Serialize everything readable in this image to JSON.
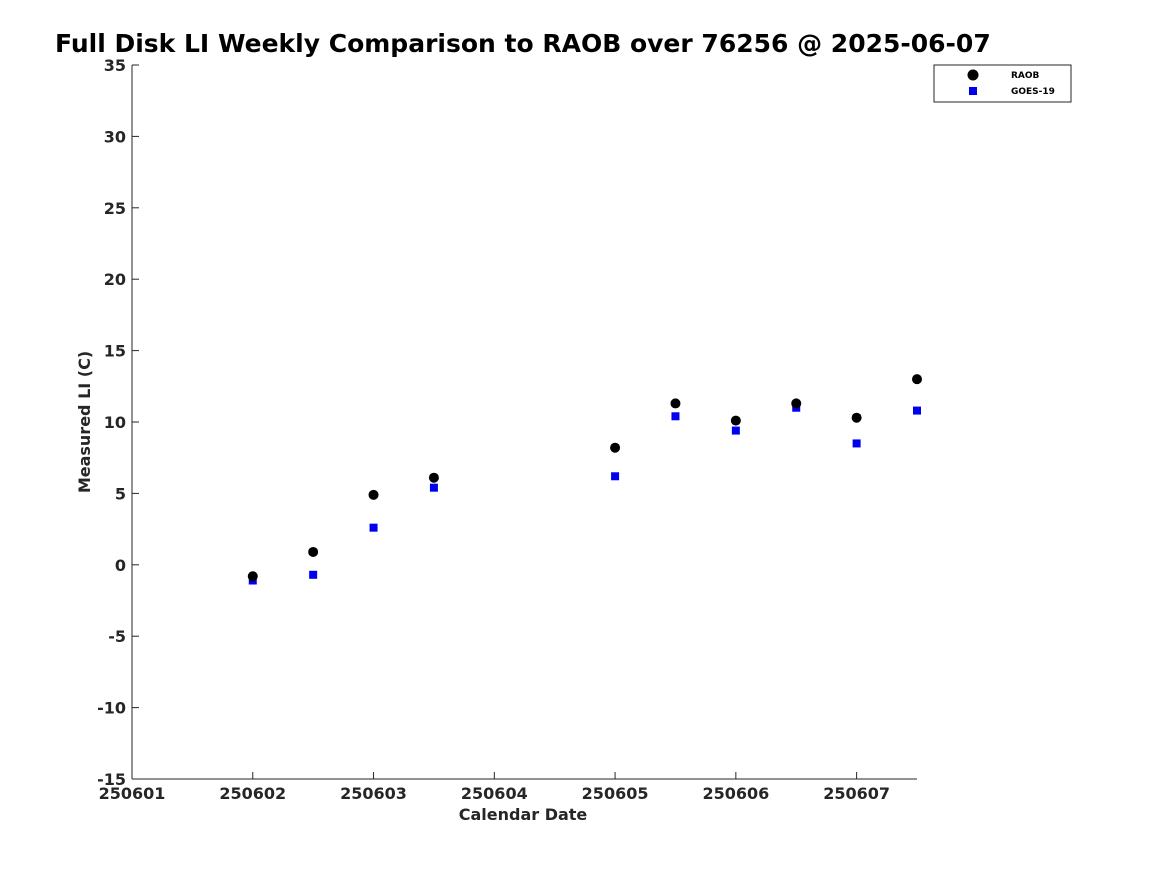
{
  "chart_data": {
    "type": "scatter",
    "title": "Full Disk LI Weekly Comparison to RAOB over 76256 @ 2025-06-07",
    "xlabel": "Calendar Date",
    "ylabel": "Measured LI (C)",
    "xlim": [
      1,
      7.5
    ],
    "ylim": [
      -15,
      35
    ],
    "x_ticks": [
      {
        "value": 1,
        "label": "250601"
      },
      {
        "value": 2,
        "label": "250602"
      },
      {
        "value": 3,
        "label": "250603"
      },
      {
        "value": 4,
        "label": "250604"
      },
      {
        "value": 5,
        "label": "250605"
      },
      {
        "value": 6,
        "label": "250606"
      },
      {
        "value": 7,
        "label": "250607"
      }
    ],
    "y_ticks": [
      {
        "value": -15,
        "label": "-15"
      },
      {
        "value": -10,
        "label": "-10"
      },
      {
        "value": -5,
        "label": "-5"
      },
      {
        "value": 0,
        "label": "0"
      },
      {
        "value": 5,
        "label": "5"
      },
      {
        "value": 10,
        "label": "10"
      },
      {
        "value": 15,
        "label": "15"
      },
      {
        "value": 20,
        "label": "20"
      },
      {
        "value": 25,
        "label": "25"
      },
      {
        "value": 30,
        "label": "30"
      },
      {
        "value": 35,
        "label": "35"
      }
    ],
    "grid": false,
    "legend_position": "top-right",
    "series": [
      {
        "name": "RAOB",
        "marker": "circle",
        "color": "#000000",
        "x": [
          2,
          2.5,
          3,
          3.5,
          5,
          5.5,
          6,
          6.5,
          7,
          7.5
        ],
        "y": [
          -0.8,
          0.9,
          4.9,
          6.1,
          8.2,
          11.3,
          10.1,
          11.3,
          10.3,
          13.0
        ]
      },
      {
        "name": "GOES-19",
        "marker": "square",
        "color": "#0000ee",
        "x": [
          2,
          2.5,
          3,
          3.5,
          5,
          5.5,
          6,
          6.5,
          7,
          7.5
        ],
        "y": [
          -1.1,
          -0.7,
          2.6,
          5.4,
          6.2,
          10.4,
          9.4,
          11.0,
          8.5,
          10.8
        ]
      }
    ]
  }
}
